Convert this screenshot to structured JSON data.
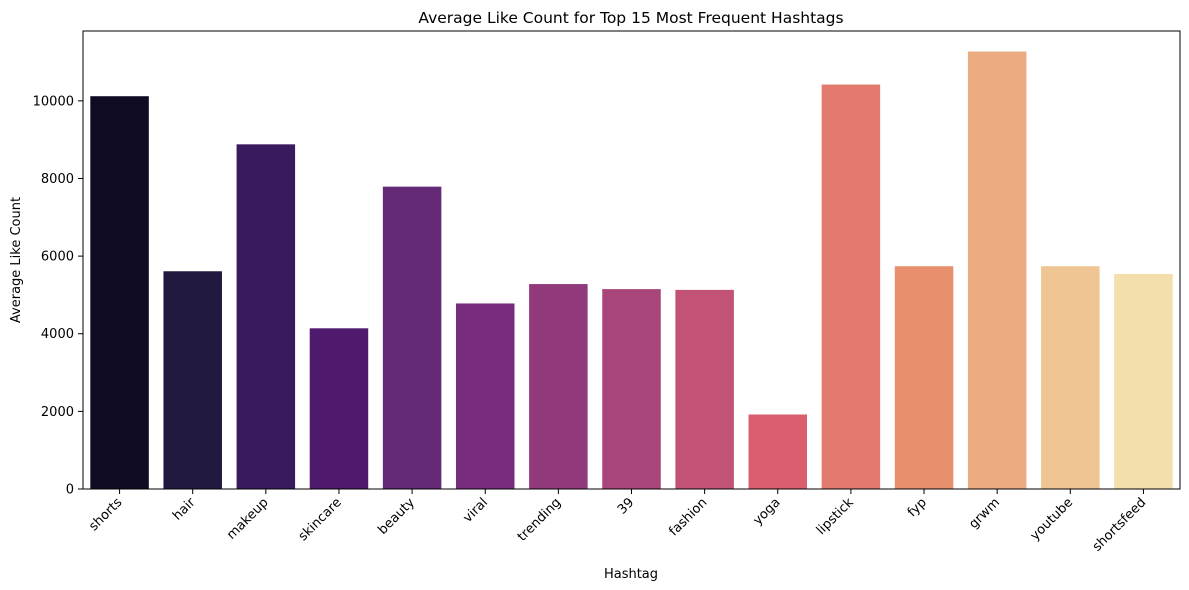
{
  "chart_data": {
    "type": "bar",
    "title": "Average Like Count for Top 15 Most Frequent Hashtags",
    "xlabel": "Hashtag",
    "ylabel": "Average Like Count",
    "categories": [
      "shorts",
      "hair",
      "makeup",
      "skincare",
      "beauty",
      "viral",
      "trending",
      "39",
      "fashion",
      "yoga",
      "lipstick",
      "fyp",
      "grwm",
      "youtube",
      "shortsfeed"
    ],
    "values": [
      10120,
      5610,
      8880,
      4140,
      7790,
      4780,
      5280,
      5150,
      5130,
      1920,
      10420,
      5740,
      11270,
      5740,
      5540
    ],
    "ylim": [
      0,
      11800
    ],
    "yticks": [
      0,
      2000,
      4000,
      6000,
      8000,
      10000
    ],
    "ytick_labels": [
      "0",
      "2000",
      "4000",
      "6000",
      "8000",
      "10000"
    ],
    "grid": false,
    "legend": "none",
    "colors": [
      "#0e0b22",
      "#221840",
      "#3a1a5e",
      "#4f1a6e",
      "#642a77",
      "#772b7b",
      "#903a7b",
      "#a8457a",
      "#c25374",
      "#db5e6f",
      "#e27a6d",
      "#e8906d",
      "#ecaa80",
      "#f0c594",
      "#f3dfac"
    ]
  }
}
